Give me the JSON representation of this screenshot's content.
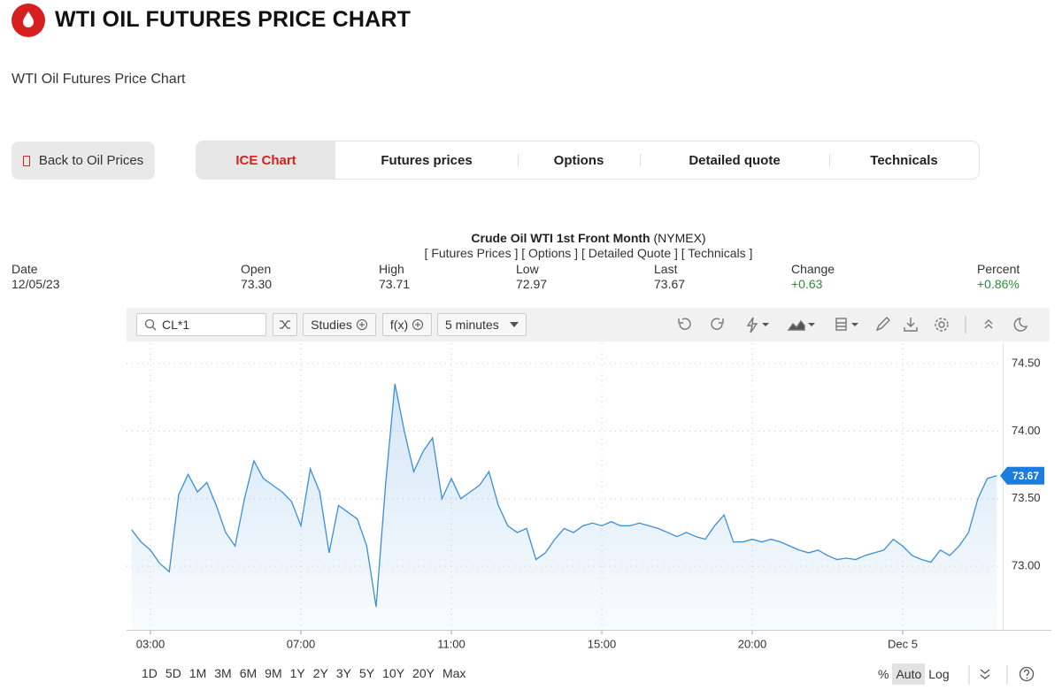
{
  "header": {
    "title": "WTI OIL FUTURES PRICE CHART",
    "subtitle": "WTI Oil Futures Price Chart"
  },
  "back_button": "Back to Oil Prices",
  "tabs": [
    {
      "label": "ICE Chart",
      "active": true
    },
    {
      "label": "Futures prices",
      "active": false
    },
    {
      "label": "Options",
      "active": false
    },
    {
      "label": "Detailed quote",
      "active": false
    },
    {
      "label": "Technicals",
      "active": false
    }
  ],
  "quote": {
    "name": "Crude Oil WTI 1st Front Month",
    "exchange": "(NYMEX)",
    "links": "[ Futures Prices ] [ Options ] [ Detailed Quote ] [ Technicals ]",
    "fields": [
      {
        "label": "Date",
        "value": "12/05/23"
      },
      {
        "label": "Open",
        "value": "73.30"
      },
      {
        "label": "High",
        "value": "73.71"
      },
      {
        "label": "Low",
        "value": "72.97"
      },
      {
        "label": "Last",
        "value": "73.67"
      },
      {
        "label": "Change",
        "value": "+0.63",
        "color": "#2e8b3a"
      },
      {
        "label": "Percent",
        "value": "+0.86%",
        "color": "#2e8b3a"
      }
    ]
  },
  "toolbar": {
    "symbol": "CL*1",
    "studies": "Studies",
    "functions": "f(x)",
    "interval": "5 minutes"
  },
  "ranges": [
    "1D",
    "5D",
    "1M",
    "3M",
    "6M",
    "9M",
    "1Y",
    "2Y",
    "3Y",
    "5Y",
    "10Y",
    "20Y",
    "Max"
  ],
  "scale_modes": [
    {
      "label": "%",
      "active": false
    },
    {
      "label": "Auto",
      "active": true
    },
    {
      "label": "Log",
      "active": false
    }
  ],
  "chart_data": {
    "type": "line",
    "color": "#3a8fd9",
    "grid": true,
    "categories": [
      null,
      null,
      "03:00",
      null,
      null,
      null,
      null,
      null,
      null,
      null,
      null,
      null,
      null,
      null,
      null,
      null,
      null,
      null,
      "07:00",
      null,
      null,
      null,
      null,
      null,
      null,
      null,
      null,
      null,
      null,
      null,
      null,
      null,
      null,
      null,
      "11:00",
      null,
      null,
      null,
      null,
      null,
      null,
      null,
      null,
      null,
      null,
      null,
      null,
      null,
      null,
      null,
      "15:00",
      null,
      null,
      null,
      null,
      null,
      null,
      null,
      null,
      null,
      null,
      null,
      null,
      null,
      null,
      null,
      "20:00",
      null,
      null,
      null,
      null,
      null,
      null,
      null,
      null,
      null,
      null,
      null,
      null,
      null,
      null,
      null,
      "Dec 5",
      null,
      null,
      null,
      null,
      null,
      null,
      null,
      null,
      null,
      null
    ],
    "values": [
      73.27,
      73.18,
      73.12,
      73.02,
      72.96,
      73.53,
      73.68,
      73.55,
      73.62,
      73.45,
      73.25,
      73.15,
      73.5,
      73.78,
      73.65,
      73.6,
      73.55,
      73.48,
      73.3,
      73.72,
      73.55,
      73.1,
      73.45,
      73.4,
      73.35,
      73.15,
      72.7,
      73.6,
      74.35,
      74.0,
      73.7,
      73.85,
      73.95,
      73.5,
      73.65,
      73.5,
      73.55,
      73.6,
      73.7,
      73.45,
      73.3,
      73.25,
      73.28,
      73.05,
      73.1,
      73.2,
      73.28,
      73.25,
      73.3,
      73.32,
      73.3,
      73.33,
      73.3,
      73.3,
      73.32,
      73.3,
      73.28,
      73.25,
      73.22,
      73.25,
      73.22,
      73.2,
      73.3,
      73.38,
      73.18,
      73.18,
      73.2,
      73.18,
      73.2,
      73.18,
      73.15,
      73.12,
      73.1,
      73.12,
      73.08,
      73.05,
      73.06,
      73.05,
      73.08,
      73.1,
      73.12,
      73.2,
      73.15,
      73.08,
      73.05,
      73.03,
      73.12,
      73.08,
      73.15,
      73.25,
      73.5,
      73.65,
      73.67
    ],
    "last_value_label": "73.67",
    "ylim": [
      72.53,
      74.65
    ],
    "yticks": [
      {
        "value": 73,
        "label": "73.00"
      },
      {
        "value": 73.5,
        "label": "73.50"
      },
      {
        "value": 74,
        "label": "74.00"
      },
      {
        "value": 74.5,
        "label": "74.50"
      }
    ]
  }
}
